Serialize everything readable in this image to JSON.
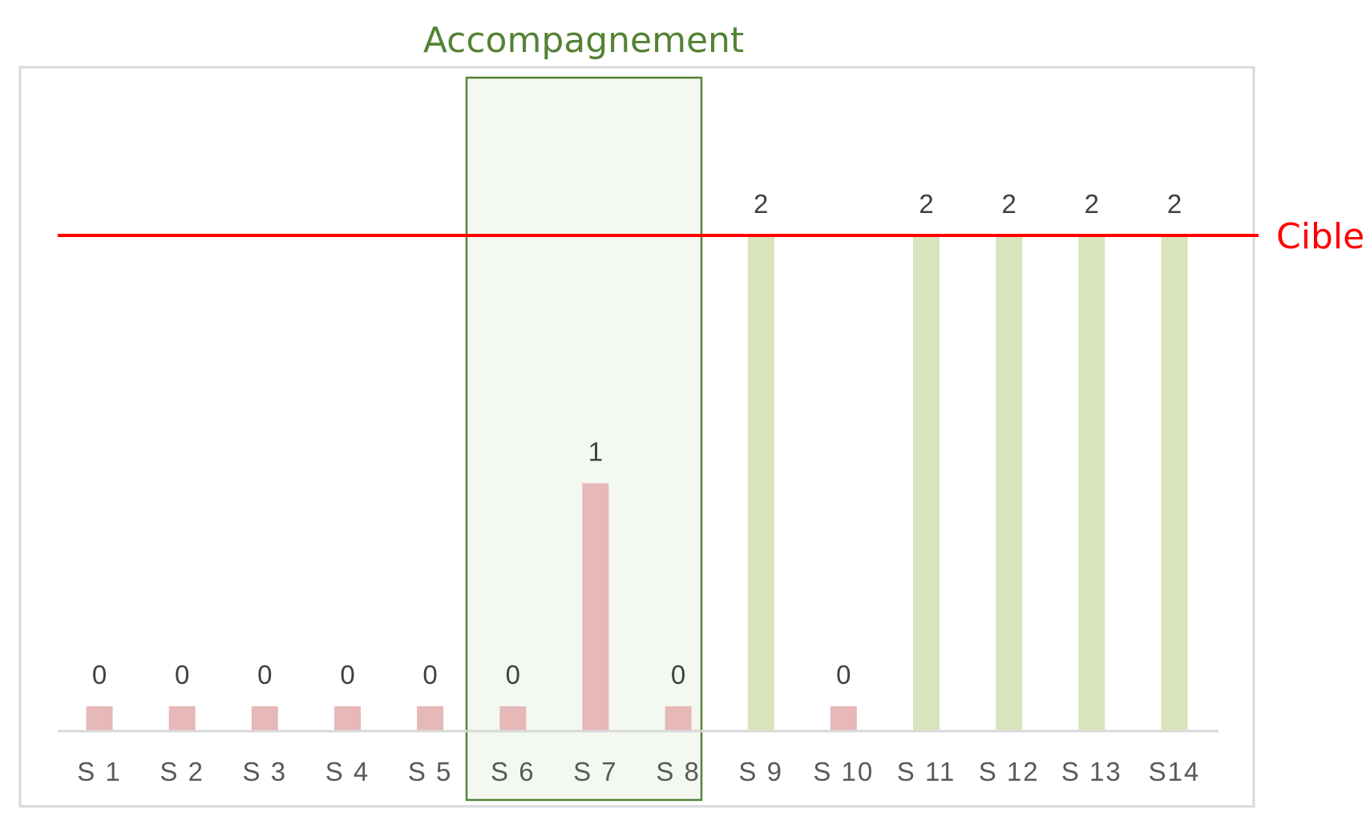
{
  "chart_data": {
    "type": "bar",
    "categories": [
      "S 1",
      "S 2",
      "S 3",
      "S 4",
      "S 5",
      "S 6",
      "S 7",
      "S 8",
      "S 9",
      "S 10",
      "S 11",
      "S 12",
      "S 13",
      "S14"
    ],
    "values": [
      0,
      0,
      0,
      0,
      0,
      0,
      1,
      0,
      2,
      0,
      2,
      2,
      2,
      2
    ],
    "data_labels": [
      "0",
      "0",
      "0",
      "0",
      "0",
      "0",
      "1",
      "0",
      "2",
      "0",
      "2",
      "2",
      "2",
      "2"
    ],
    "ylim": [
      0,
      2
    ],
    "grid": false,
    "legend": "none",
    "target": {
      "label": "Cible",
      "value": 2,
      "color": "#ff0000"
    },
    "highlight": {
      "label": "Accompagnement",
      "from_category": "S 6",
      "to_category": "S 8",
      "color": "#548235",
      "fill": "#f3f8f0"
    },
    "colors": {
      "below_target": "#e6b8b7",
      "at_target": "#d8e4bc",
      "axis": "#d9d9d9",
      "border": "#d9d9d9"
    }
  }
}
